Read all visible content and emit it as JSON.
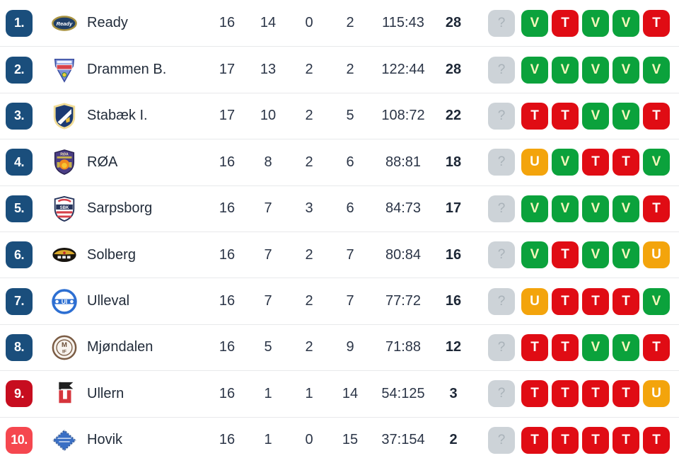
{
  "table": {
    "columns": [
      "rank",
      "team",
      "played",
      "wins",
      "draws",
      "losses",
      "goals",
      "points",
      "form"
    ],
    "rows": [
      {
        "rank": "1.",
        "rank_color": "blue",
        "team": "Ready",
        "logo": "ready",
        "played": "16",
        "wins": "14",
        "draws": "0",
        "losses": "2",
        "goals": "115:43",
        "points": "28",
        "form": [
          "?",
          "V",
          "T",
          "V",
          "V",
          "T"
        ]
      },
      {
        "rank": "2.",
        "rank_color": "blue",
        "team": "Drammen B.",
        "logo": "drammen",
        "played": "17",
        "wins": "13",
        "draws": "2",
        "losses": "2",
        "goals": "122:44",
        "points": "28",
        "form": [
          "?",
          "V",
          "V",
          "V",
          "V",
          "V"
        ]
      },
      {
        "rank": "3.",
        "rank_color": "blue",
        "team": "Stabæk I.",
        "logo": "stabaek",
        "played": "17",
        "wins": "10",
        "draws": "2",
        "losses": "5",
        "goals": "108:72",
        "points": "22",
        "form": [
          "?",
          "T",
          "T",
          "V",
          "V",
          "T"
        ]
      },
      {
        "rank": "4.",
        "rank_color": "blue",
        "team": "RØA",
        "logo": "roa",
        "played": "16",
        "wins": "8",
        "draws": "2",
        "losses": "6",
        "goals": "88:81",
        "points": "18",
        "form": [
          "?",
          "U",
          "V",
          "T",
          "T",
          "V"
        ]
      },
      {
        "rank": "5.",
        "rank_color": "blue",
        "team": "Sarpsborg",
        "logo": "sarpsborg",
        "played": "16",
        "wins": "7",
        "draws": "3",
        "losses": "6",
        "goals": "84:73",
        "points": "17",
        "form": [
          "?",
          "V",
          "V",
          "V",
          "V",
          "T"
        ]
      },
      {
        "rank": "6.",
        "rank_color": "blue",
        "team": "Solberg",
        "logo": "solberg",
        "played": "16",
        "wins": "7",
        "draws": "2",
        "losses": "7",
        "goals": "80:84",
        "points": "16",
        "form": [
          "?",
          "V",
          "T",
          "V",
          "V",
          "U"
        ]
      },
      {
        "rank": "7.",
        "rank_color": "blue",
        "team": "Ulleval",
        "logo": "ulleval",
        "played": "16",
        "wins": "7",
        "draws": "2",
        "losses": "7",
        "goals": "77:72",
        "points": "16",
        "form": [
          "?",
          "U",
          "T",
          "T",
          "T",
          "V"
        ]
      },
      {
        "rank": "8.",
        "rank_color": "blue",
        "team": "Mjøndalen",
        "logo": "mjondalen",
        "played": "16",
        "wins": "5",
        "draws": "2",
        "losses": "9",
        "goals": "71:88",
        "points": "12",
        "form": [
          "?",
          "T",
          "T",
          "V",
          "V",
          "T"
        ]
      },
      {
        "rank": "9.",
        "rank_color": "red",
        "team": "Ullern",
        "logo": "ullern",
        "played": "16",
        "wins": "1",
        "draws": "1",
        "losses": "14",
        "goals": "54:125",
        "points": "3",
        "form": [
          "?",
          "T",
          "T",
          "T",
          "T",
          "U"
        ]
      },
      {
        "rank": "10.",
        "rank_color": "light_red",
        "team": "Hovik",
        "logo": "hovik",
        "played": "16",
        "wins": "1",
        "draws": "0",
        "losses": "15",
        "goals": "37:154",
        "points": "2",
        "form": [
          "?",
          "T",
          "T",
          "T",
          "T",
          "T"
        ]
      }
    ]
  },
  "form_legend": {
    "V": "win",
    "T": "loss",
    "U": "draw",
    "?": "unknown"
  },
  "colors": {
    "rank_blue": "#1a4e7c",
    "rank_red": "#c70d1f",
    "rank_light_red": "#f5474f",
    "win": "#0ba23c",
    "loss": "#e00c14",
    "draw": "#f3a40c",
    "unknown_bg": "#cdd3d8",
    "unknown_text": "#a9b2b9",
    "win_text": "#f5f7bb",
    "loss_text": "#ffffff",
    "draw_text": "#ffffff"
  }
}
